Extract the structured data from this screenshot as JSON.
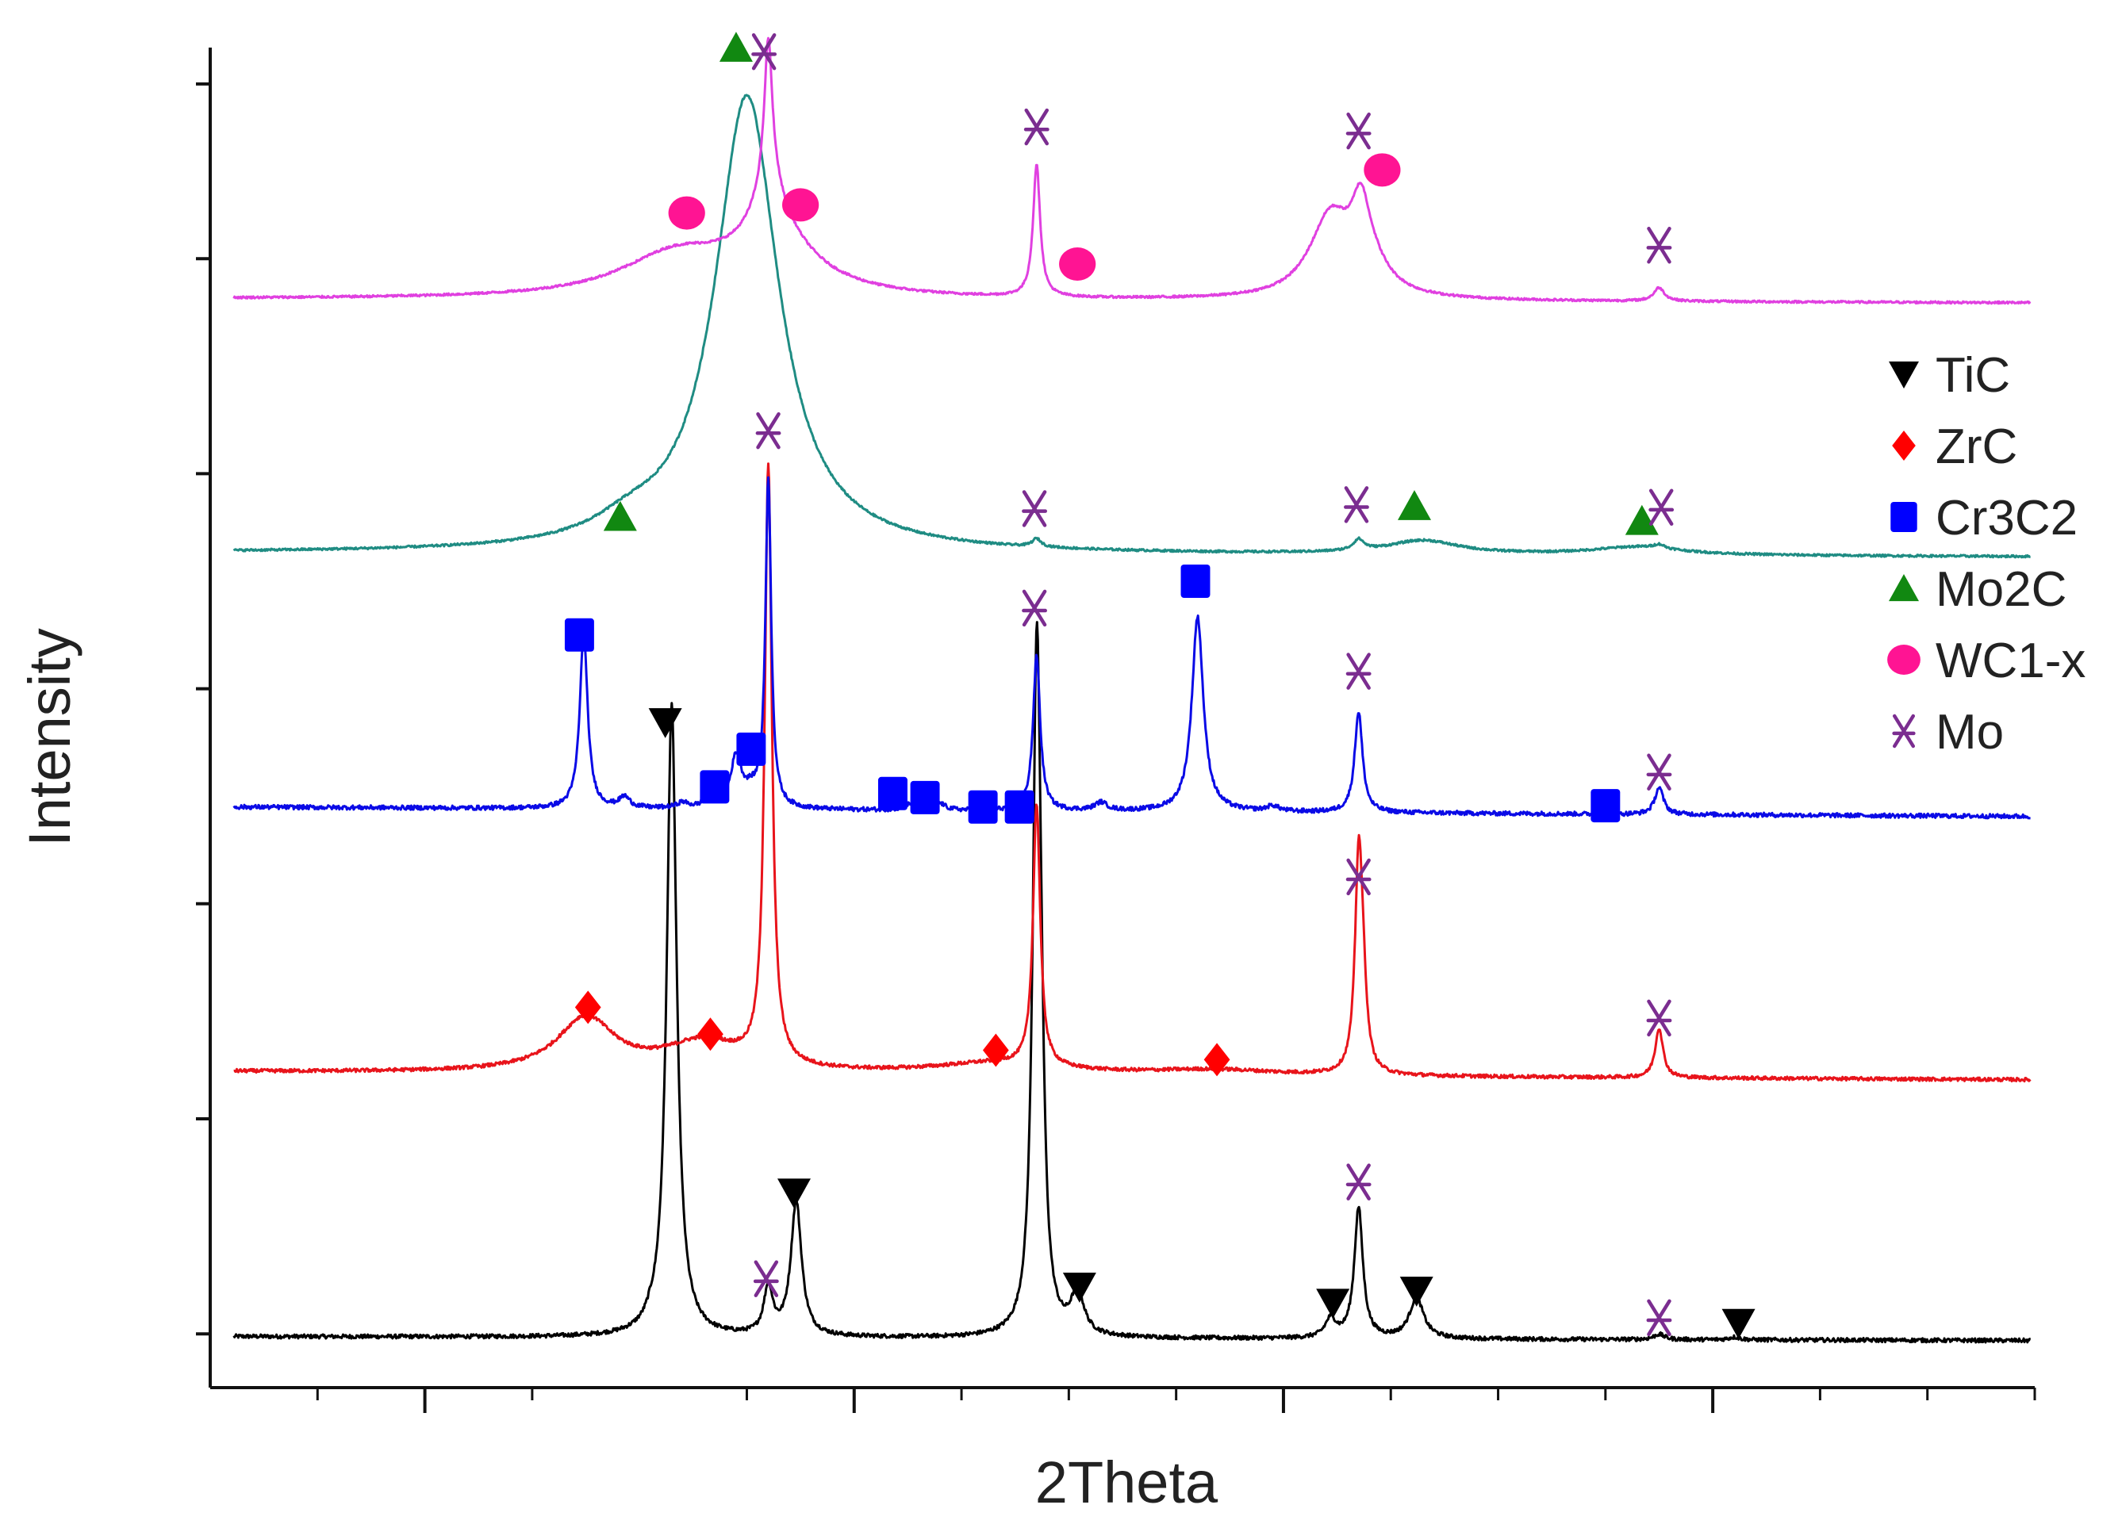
{
  "chart_data": {
    "type": "line",
    "title": "",
    "xlabel": "2Theta",
    "ylabel": "Intensity",
    "xlim": [
      20,
      105
    ],
    "ylim": [
      0,
      1
    ],
    "grid": false,
    "x_ticks_major": [
      30,
      50,
      70,
      90
    ],
    "x_ticks_minor": [
      25,
      35,
      45,
      55,
      60,
      65,
      75,
      80,
      85,
      95,
      100,
      105
    ],
    "y_ticks": [
      0.04,
      0.2,
      0.36,
      0.52,
      0.68,
      0.84,
      0.97
    ],
    "legend": {
      "position": "right",
      "entries": [
        {
          "label": "TiC",
          "marker": "triangle-down",
          "color": "#000000"
        },
        {
          "label": "ZrC",
          "marker": "diamond",
          "color": "#ff0000"
        },
        {
          "label": "Cr3C2",
          "marker": "square",
          "color": "#0000ff"
        },
        {
          "label": "Mo2C",
          "marker": "triangle-up",
          "color": "#118811"
        },
        {
          "label": "WC1-x",
          "marker": "circle",
          "color": "#ff1493"
        },
        {
          "label": "Mo",
          "marker": "star",
          "color": "#7b2d90"
        }
      ]
    },
    "series": [
      {
        "name": "TiC + Mo",
        "color": "#000000",
        "baseline": [
          0.038,
          0.035
        ],
        "noise": 0.0015,
        "peaks": [
          {
            "x": 41.5,
            "h": 0.47,
            "w": 0.28
          },
          {
            "x": 40.5,
            "h": 0.003,
            "w": 0.2
          },
          {
            "x": 46.0,
            "h": 0.035,
            "w": 0.25
          },
          {
            "x": 47.3,
            "h": 0.1,
            "w": 0.3
          },
          {
            "x": 58.5,
            "h": 0.48,
            "w": 0.22
          },
          {
            "x": 58.7,
            "h": 0.1,
            "w": 0.2
          },
          {
            "x": 60.4,
            "h": 0.032,
            "w": 0.35
          },
          {
            "x": 72.2,
            "h": 0.014,
            "w": 0.3
          },
          {
            "x": 73.5,
            "h": 0.097,
            "w": 0.24
          },
          {
            "x": 76.2,
            "h": 0.03,
            "w": 0.4
          },
          {
            "x": 87.5,
            "h": 0.004,
            "w": 0.3
          },
          {
            "x": 91.0,
            "h": 0.002,
            "w": 0.3
          }
        ]
      },
      {
        "name": "ZrC + Mo",
        "color": "#e8141b",
        "baseline": [
          0.235,
          0.229
        ],
        "noise": 0.0013,
        "peaks": [
          {
            "x": 37.5,
            "h": 0.04,
            "w": 1.6
          },
          {
            "x": 43.0,
            "h": 0.022,
            "w": 2.2
          },
          {
            "x": 46.0,
            "h": 0.445,
            "w": 0.2
          },
          {
            "x": 56.6,
            "h": 0.008,
            "w": 3.5
          },
          {
            "x": 58.5,
            "h": 0.195,
            "w": 0.2
          },
          {
            "x": 66.8,
            "h": 0.004,
            "w": 3.5
          },
          {
            "x": 73.5,
            "h": 0.152,
            "w": 0.2
          },
          {
            "x": 73.7,
            "h": 0.05,
            "w": 0.2
          },
          {
            "x": 87.5,
            "h": 0.037,
            "w": 0.22
          }
        ]
      },
      {
        "name": "Cr3C2 + Mo",
        "color": "#0a0ae6",
        "baseline": [
          0.432,
          0.425
        ],
        "noise": 0.0016,
        "peaks": [
          {
            "x": 37.4,
            "h": 0.13,
            "w": 0.22
          },
          {
            "x": 39.3,
            "h": 0.008,
            "w": 0.3
          },
          {
            "x": 42.0,
            "h": 0.004,
            "w": 0.3
          },
          {
            "x": 43.4,
            "h": 0.015,
            "w": 0.25
          },
          {
            "x": 44.5,
            "h": 0.037,
            "w": 0.3
          },
          {
            "x": 45.2,
            "h": 0.01,
            "w": 0.4
          },
          {
            "x": 46.0,
            "h": 0.245,
            "w": 0.16
          },
          {
            "x": 52.5,
            "h": 0.004,
            "w": 0.3
          },
          {
            "x": 54.0,
            "h": 0.005,
            "w": 0.3
          },
          {
            "x": 58.5,
            "h": 0.115,
            "w": 0.2
          },
          {
            "x": 61.5,
            "h": 0.006,
            "w": 0.35
          },
          {
            "x": 66.0,
            "h": 0.145,
            "w": 0.32
          },
          {
            "x": 69.5,
            "h": 0.004,
            "w": 0.35
          },
          {
            "x": 73.5,
            "h": 0.075,
            "w": 0.22
          },
          {
            "x": 87.5,
            "h": 0.02,
            "w": 0.24
          }
        ]
      },
      {
        "name": "Mo2C + Mo",
        "color": "#1f8c83",
        "baseline": [
          0.621,
          0.618
        ],
        "noise": 0.0008,
        "peaks": [
          {
            "x": 45.0,
            "h": 0.34,
            "w": 1.8
          },
          {
            "x": 39.5,
            "h": 0.012,
            "w": 2.0
          },
          {
            "x": 58.5,
            "h": 0.006,
            "w": 0.25
          },
          {
            "x": 73.5,
            "h": 0.008,
            "w": 0.3
          },
          {
            "x": 76.5,
            "h": 0.01,
            "w": 2.0
          },
          {
            "x": 86.5,
            "h": 0.006,
            "w": 2.5
          },
          {
            "x": 87.5,
            "h": 0.003,
            "w": 0.3
          }
        ]
      },
      {
        "name": "WC1-x + Mo",
        "color": "#e040e0",
        "baseline": [
          0.81,
          0.807
        ],
        "noise": 0.0008,
        "peaks": [
          {
            "x": 41.7,
            "h": 0.031,
            "w": 3.2
          },
          {
            "x": 46.3,
            "h": 0.04,
            "w": 2.3
          },
          {
            "x": 46.0,
            "h": 0.105,
            "w": 0.22
          },
          {
            "x": 46.05,
            "h": 0.04,
            "w": 0.8
          },
          {
            "x": 58.5,
            "h": 0.098,
            "w": 0.2
          },
          {
            "x": 72.2,
            "h": 0.06,
            "w": 1.2
          },
          {
            "x": 73.6,
            "h": 0.045,
            "w": 0.5
          },
          {
            "x": 74.0,
            "h": 0.02,
            "w": 1.0
          },
          {
            "x": 87.5,
            "h": 0.01,
            "w": 0.3
          }
        ]
      }
    ],
    "markers": [
      {
        "phase": "TiC",
        "x": 41.2,
        "y": 0.495
      },
      {
        "phase": "TiC",
        "x": 47.2,
        "y": 0.145
      },
      {
        "phase": "TiC",
        "x": 60.5,
        "y": 0.075
      },
      {
        "phase": "TiC",
        "x": 72.3,
        "y": 0.063
      },
      {
        "phase": "TiC",
        "x": 76.2,
        "y": 0.072
      },
      {
        "phase": "TiC",
        "x": 91.2,
        "y": 0.048
      },
      {
        "phase": "Mo",
        "x": 45.9,
        "y": 0.081
      },
      {
        "phase": "Mo",
        "x": 73.5,
        "y": 0.153
      },
      {
        "phase": "Mo",
        "x": 87.5,
        "y": 0.052
      },
      {
        "phase": "ZrC",
        "x": 37.6,
        "y": 0.283
      },
      {
        "phase": "ZrC",
        "x": 43.3,
        "y": 0.263
      },
      {
        "phase": "ZrC",
        "x": 56.6,
        "y": 0.251
      },
      {
        "phase": "ZrC",
        "x": 66.9,
        "y": 0.244
      },
      {
        "phase": "Mo",
        "x": 73.5,
        "y": 0.38
      },
      {
        "phase": "Mo",
        "x": 87.5,
        "y": 0.275
      },
      {
        "phase": "Cr3C2",
        "x": 37.2,
        "y": 0.56
      },
      {
        "phase": "Cr3C2",
        "x": 43.5,
        "y": 0.447
      },
      {
        "phase": "Cr3C2",
        "x": 45.2,
        "y": 0.475
      },
      {
        "phase": "Cr3C2",
        "x": 51.8,
        "y": 0.442
      },
      {
        "phase": "Cr3C2",
        "x": 53.3,
        "y": 0.439
      },
      {
        "phase": "Cr3C2",
        "x": 56.0,
        "y": 0.432
      },
      {
        "phase": "Cr3C2",
        "x": 57.7,
        "y": 0.432
      },
      {
        "phase": "Cr3C2",
        "x": 65.9,
        "y": 0.6
      },
      {
        "phase": "Cr3C2",
        "x": 85.0,
        "y": 0.433
      },
      {
        "phase": "Mo",
        "x": 58.4,
        "y": 0.58
      },
      {
        "phase": "Mo",
        "x": 73.5,
        "y": 0.533
      },
      {
        "phase": "Mo",
        "x": 87.5,
        "y": 0.458
      },
      {
        "phase": "Mo2C",
        "x": 39.1,
        "y": 0.648
      },
      {
        "phase": "Mo2C",
        "x": 76.1,
        "y": 0.656
      },
      {
        "phase": "Mo2C",
        "x": 86.7,
        "y": 0.645
      },
      {
        "phase": "Mo",
        "x": 46.0,
        "y": 0.712
      },
      {
        "phase": "Mo",
        "x": 58.4,
        "y": 0.654
      },
      {
        "phase": "Mo",
        "x": 73.4,
        "y": 0.657
      },
      {
        "phase": "Mo",
        "x": 87.6,
        "y": 0.655
      },
      {
        "phase": "Mo2C",
        "x": 44.5,
        "y": 0.997
      },
      {
        "phase": "Mo",
        "x": 45.8,
        "y": 0.994
      },
      {
        "phase": "WC1-x",
        "x": 42.2,
        "y": 0.874
      },
      {
        "phase": "WC1-x",
        "x": 47.5,
        "y": 0.88
      },
      {
        "phase": "WC1-x",
        "x": 60.4,
        "y": 0.836
      },
      {
        "phase": "WC1-x",
        "x": 74.6,
        "y": 0.906
      },
      {
        "phase": "Mo",
        "x": 58.5,
        "y": 0.938
      },
      {
        "phase": "Mo",
        "x": 73.5,
        "y": 0.935
      },
      {
        "phase": "Mo",
        "x": 87.5,
        "y": 0.85
      }
    ]
  }
}
